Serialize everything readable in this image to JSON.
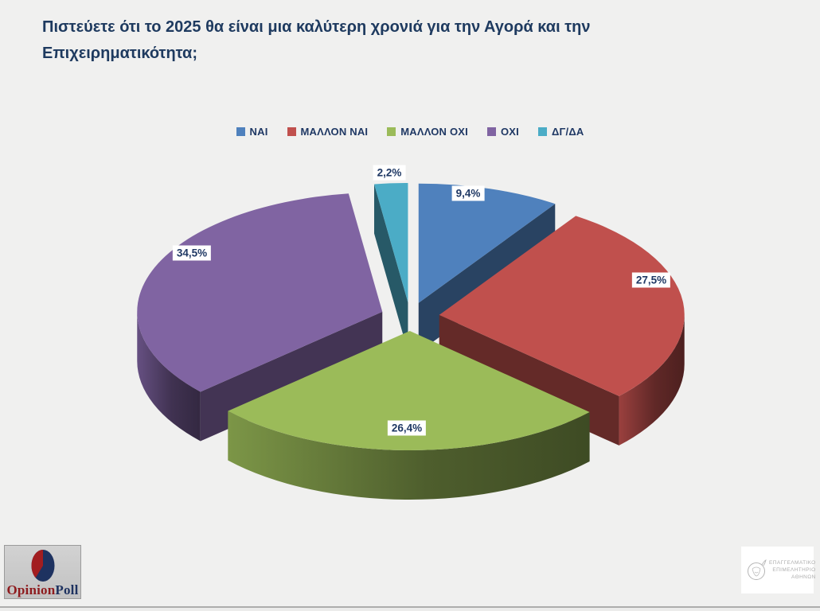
{
  "title": "Πιστεύετε ότι το 2025 θα είναι μια καλύτερη χρονιά για την Αγορά και την Επιχειρηματικότητα;",
  "chart_data": {
    "type": "pie",
    "style": "3d-exploded",
    "unit": "%",
    "categories": [
      "ΝΑΙ",
      "ΜΑΛΛΟΝ ΝΑΙ",
      "ΜΑΛΛΟΝ ΟΧΙ",
      "ΟΧΙ",
      "ΔΓ/ΔΑ"
    ],
    "values": [
      9.4,
      27.5,
      26.4,
      34.5,
      2.2
    ],
    "labels": [
      "9,4%",
      "27,5%",
      "26,4%",
      "34,5%",
      "2,2%"
    ],
    "colors": [
      "#4f81bd",
      "#c0504d",
      "#9bbb59",
      "#8064a2",
      "#4bacc6"
    ],
    "start_angle_deg": 0,
    "direction": "clockwise",
    "legend_position": "top-center",
    "label_text_color": "#1f3864",
    "label_bg_color": "#ffffff",
    "title_color": "#1e3a5f",
    "background_color": "#f0f0ef"
  },
  "branding": {
    "opinion_poll": {
      "part1": "Opinion",
      "part2": "Poll",
      "part1_color": "#8e1b1e",
      "part2_color": "#1e3260"
    },
    "chamber": {
      "lines": [
        "ΕΠΑΓΓΕΛΜΑΤΙΚΟ",
        "ΕΠΙΜΕΛΗΤΗΡΙΟ",
        "ΑΘΗΝΩΝ"
      ]
    }
  }
}
